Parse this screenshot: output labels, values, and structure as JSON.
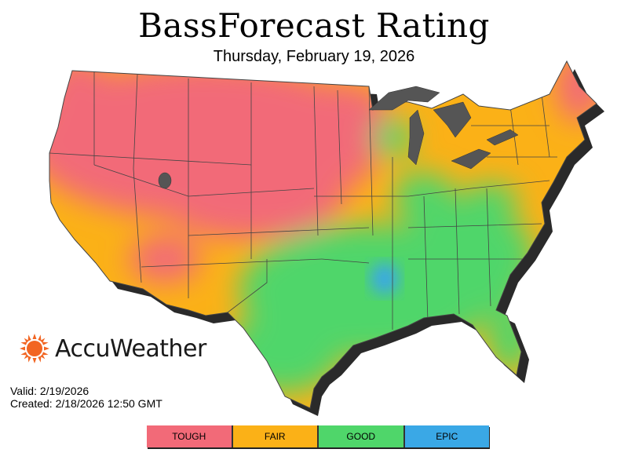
{
  "header": {
    "title": "BassForecast Rating",
    "date": "Thursday, February 19, 2026"
  },
  "brand": {
    "name": "AccuWeather",
    "icon": "sun-icon",
    "color": "#f26522"
  },
  "meta": {
    "valid": "Valid: 2/19/2026",
    "created": "Created: 2/18/2026 12:50 GMT"
  },
  "legend": {
    "items": [
      {
        "label": "TOUGH",
        "color": "#f26a78"
      },
      {
        "label": "FAIR",
        "color": "#fbb117"
      },
      {
        "label": "GOOD",
        "color": "#4fd66a"
      },
      {
        "label": "EPIC",
        "color": "#3aa8e6"
      }
    ]
  },
  "colors": {
    "tough": "#f26a78",
    "fair": "#fbb117",
    "good": "#4fd66a",
    "epic": "#3aa8e6",
    "lakes": "#555555",
    "borders": "#444444"
  }
}
